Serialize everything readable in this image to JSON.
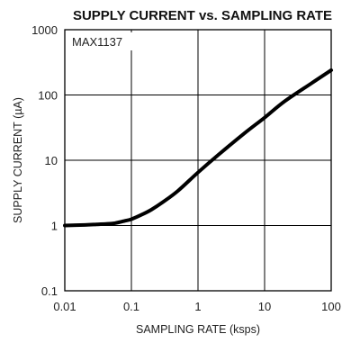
{
  "chart_data": {
    "type": "line",
    "title": "SUPPLY CURRENT vs. SAMPLING RATE",
    "xlabel": "SAMPLING RATE (ksps)",
    "ylabel": "SUPPLY CURRENT (µA)",
    "annotation": "MAX1137",
    "x_scale": "log",
    "y_scale": "log",
    "xlim": [
      0.01,
      100
    ],
    "ylim": [
      0.1,
      1000
    ],
    "x_ticks": [
      "0.01",
      "0.1",
      "1",
      "10",
      "100"
    ],
    "y_ticks": [
      "0.1",
      "1",
      "10",
      "100",
      "1000"
    ],
    "grid": true,
    "series": [
      {
        "x": [
          0.01,
          0.02,
          0.03,
          0.05,
          0.06,
          0.08,
          0.1,
          0.15,
          0.2,
          0.3,
          0.5,
          1,
          2,
          5,
          10,
          20,
          50,
          100
        ],
        "y": [
          1.0,
          1.02,
          1.04,
          1.07,
          1.1,
          1.18,
          1.25,
          1.5,
          1.75,
          2.3,
          3.4,
          6.5,
          12,
          26,
          45,
          80,
          150,
          240
        ]
      }
    ],
    "colors": {
      "line": "#000000",
      "grid": "#000000",
      "text": "#222222"
    }
  }
}
